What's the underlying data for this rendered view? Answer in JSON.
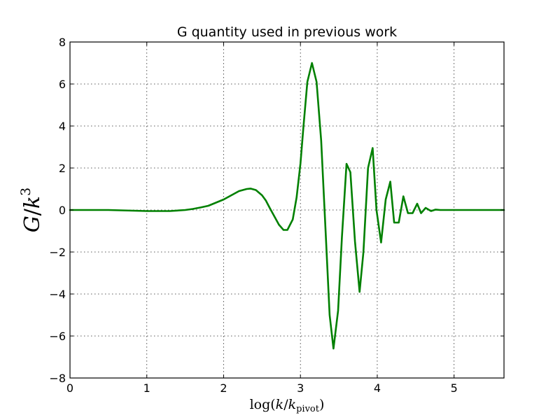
{
  "chart_data": {
    "type": "line",
    "title": "G quantity used in previous work",
    "xlabel": "log(k/k_pivot)",
    "ylabel": "G/k^3",
    "xlim": [
      0,
      5.65
    ],
    "ylim": [
      -8,
      8
    ],
    "x_ticks": [
      0,
      1,
      2,
      3,
      4,
      5
    ],
    "y_ticks": [
      -8,
      -6,
      -4,
      -2,
      0,
      2,
      4,
      6,
      8
    ],
    "x_tick_labels": [
      "0",
      "1",
      "2",
      "3",
      "4",
      "5"
    ],
    "y_tick_labels": [
      "−8",
      "−6",
      "−4",
      "−2",
      "0",
      "2",
      "4",
      "6",
      "8"
    ],
    "grid": true,
    "series_color": "#008000",
    "x": [
      0,
      0.5,
      1.0,
      1.3,
      1.5,
      1.6,
      1.7,
      1.8,
      1.9,
      2.0,
      2.1,
      2.2,
      2.3,
      2.35,
      2.42,
      2.5,
      2.55,
      2.6,
      2.66,
      2.72,
      2.78,
      2.83,
      2.9,
      2.95,
      3.0,
      3.04,
      3.09,
      3.15,
      3.21,
      3.27,
      3.33,
      3.38,
      3.43,
      3.49,
      3.54,
      3.6,
      3.65,
      3.71,
      3.77,
      3.82,
      3.88,
      3.94,
      3.99,
      4.05,
      4.11,
      4.17,
      4.22,
      4.28,
      4.34,
      4.4,
      4.46,
      4.52,
      4.57,
      4.63,
      4.7,
      4.76,
      4.82,
      4.9,
      5.0,
      5.65
    ],
    "y": [
      0.0,
      0.0,
      -0.05,
      -0.05,
      0.0,
      0.05,
      0.12,
      0.2,
      0.35,
      0.5,
      0.7,
      0.9,
      1.0,
      1.02,
      0.95,
      0.7,
      0.45,
      0.1,
      -0.3,
      -0.7,
      -0.95,
      -0.95,
      -0.45,
      0.6,
      2.2,
      4.0,
      6.1,
      7.0,
      6.1,
      3.3,
      -1.2,
      -5.0,
      -6.6,
      -4.8,
      -1.3,
      2.2,
      1.8,
      -1.5,
      -3.9,
      -2.0,
      2.0,
      2.95,
      0.0,
      -1.55,
      0.5,
      1.35,
      -0.6,
      -0.6,
      0.65,
      -0.15,
      -0.15,
      0.3,
      -0.15,
      0.1,
      -0.05,
      0.02,
      0.0,
      0.0,
      0.0,
      0.0
    ]
  }
}
